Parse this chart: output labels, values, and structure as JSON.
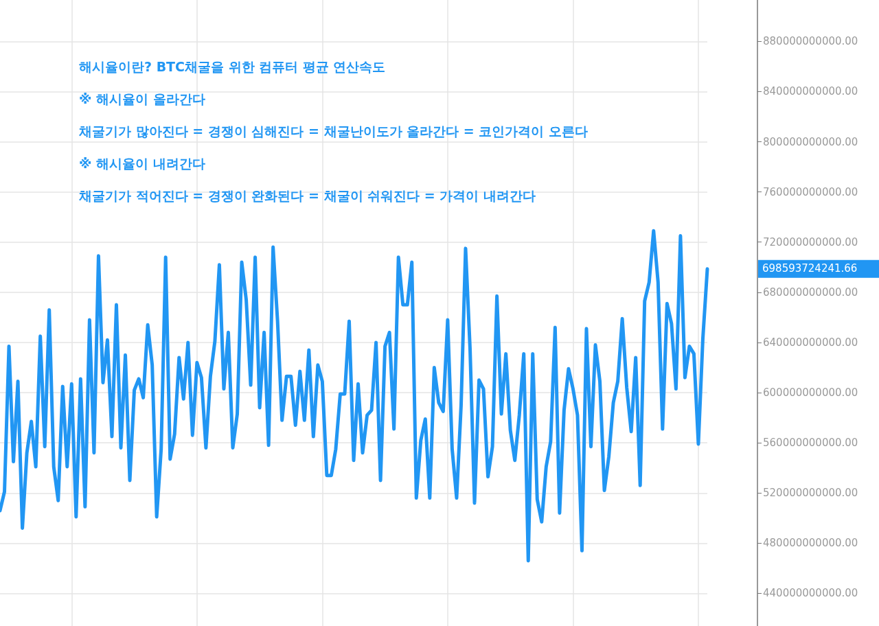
{
  "chart_data": {
    "type": "line",
    "annotations": [
      "해시율이란? BTC채굴을 위한 컴퓨터 평균 연산속도",
      "※ 해시율이 올라간다",
      "채굴기가 많아진다 = 경쟁이 심해진다 = 채굴난이도가 올라간다 = 코인가격이 오른다",
      "※ 해시율이 내려간다",
      "채굴기가 적어진다 = 경쟁이 완화된다 = 채굴이 쉬워진다 = 가격이 내려간다",
      "698593724241.66"
    ],
    "categories": [
      null,
      null,
      null,
      null,
      null,
      null,
      null,
      null,
      null,
      null,
      null,
      null,
      null,
      null,
      null,
      null,
      null,
      null,
      null,
      null,
      null,
      null,
      null,
      null,
      null,
      null,
      null,
      null,
      null,
      null,
      null,
      null,
      null,
      null,
      null,
      null,
      null,
      null,
      null,
      null,
      null,
      null,
      null,
      null,
      null,
      null,
      null,
      null,
      null,
      null,
      null,
      null,
      null,
      null,
      null,
      null,
      null,
      null,
      null,
      null,
      null,
      null,
      null,
      null,
      null,
      null,
      null,
      null,
      null,
      null,
      null,
      null,
      null,
      null,
      null,
      null,
      null,
      null,
      null,
      null,
      null,
      null,
      null,
      null,
      null,
      null,
      null,
      null,
      null,
      null,
      null,
      null,
      null,
      null,
      null,
      null,
      null,
      null,
      null,
      null,
      null,
      null,
      null,
      null,
      null,
      null,
      null,
      null,
      null,
      null,
      null,
      null,
      null,
      null,
      null,
      null,
      null,
      null,
      null,
      null,
      null,
      null,
      null,
      null,
      null,
      null,
      null,
      null,
      null,
      null,
      null,
      null,
      null,
      null,
      null,
      null,
      null,
      null,
      null,
      null,
      null,
      null,
      null,
      null,
      null,
      null,
      null,
      null,
      null,
      null,
      null,
      null,
      null,
      null,
      null,
      null,
      null,
      null,
      null
    ],
    "series": [
      {
        "color": "#2196f3",
        "values": [
          506000000000.0,
          521000000000.0,
          637000000000.0,
          545000000000.0,
          609000000000.0,
          492000000000.0,
          552000000000.0,
          577000000000.0,
          541000000000.0,
          645000000000.0,
          557000000000.0,
          666000000000.0,
          541000000000.0,
          514000000000.0,
          605000000000.0,
          541000000000.0,
          607000000000.0,
          501000000000.0,
          611000000000.0,
          509000000000.0,
          658000000000.0,
          552000000000.0,
          709000000000.0,
          608000000000.0,
          642000000000.0,
          565000000000.0,
          670000000000.0,
          556000000000.0,
          630000000000.0,
          530000000000.0,
          602000000000.0,
          611000000000.0,
          596000000000.0,
          654000000000.0,
          622000000000.0,
          501000000000.0,
          555000000000.0,
          708000000000.0,
          547000000000.0,
          567000000000.0,
          628000000000.0,
          595000000000.0,
          640000000000.0,
          566000000000.0,
          624000000000.0,
          612000000000.0,
          556000000000.0,
          613000000000.0,
          641000000000.0,
          702000000000.0,
          603000000000.0,
          648000000000.0,
          556000000000.0,
          583000000000.0,
          704000000000.0,
          674000000000.0,
          606000000000.0,
          708000000000.0,
          588000000000.0,
          648000000000.0,
          558000000000.0,
          716000000000.0,
          657000000000.0,
          578000000000.0,
          613000000000.0,
          613000000000.0,
          574000000000.0,
          617000000000.0,
          578000000000.0,
          634000000000.0,
          565000000000.0,
          622000000000.0,
          609000000000.0,
          534000000000.0,
          534000000000.0,
          555000000000.0,
          599000000000.0,
          599000000000.0,
          657000000000.0,
          546000000000.0,
          607000000000.0,
          552000000000.0,
          582000000000.0,
          586000000000.0,
          640000000000.0,
          530000000000.0,
          637000000000.0,
          648000000000.0,
          571000000000.0,
          708000000000.0,
          670000000000.0,
          670000000000.0,
          704000000000.0,
          516000000000.0,
          562000000000.0,
          579000000000.0,
          516000000000.0,
          620000000000.0,
          592000000000.0,
          585000000000.0,
          658000000000.0,
          555000000000.0,
          516000000000.0,
          590000000000.0,
          715000000000.0,
          635000000000.0,
          512000000000.0,
          610000000000.0,
          603000000000.0,
          533000000000.0,
          557000000000.0,
          677000000000.0,
          583000000000.0,
          631000000000.0,
          570000000000.0,
          546000000000.0,
          582000000000.0,
          631000000000.0,
          466000000000.0,
          631000000000.0,
          515000000000.0,
          497000000000.0,
          541000000000.0,
          561000000000.0,
          652000000000.0,
          504000000000.0,
          586000000000.0,
          619000000000.0,
          603000000000.0,
          582000000000.0,
          474000000000.0,
          651000000000.0,
          557000000000.0,
          638000000000.0,
          609000000000.0,
          522000000000.0,
          549000000000.0,
          592000000000.0,
          609000000000.0,
          659000000000.0,
          604000000000.0,
          569000000000.0,
          628000000000.0,
          526000000000.0,
          673000000000.0,
          688000000000.0,
          729000000000.0,
          688000000000.0,
          571000000000.0,
          671000000000.0,
          655000000000.0,
          603000000000.0,
          725000000000.0,
          612000000000.0,
          637000000000.0,
          631000000000.0,
          559000000000.0,
          643000000000.0,
          698593724241.66
        ]
      }
    ],
    "ylim": [
      414000000000.0,
      913000000000.0
    ],
    "yticks": [
      {
        "value": 440000000000.0,
        "label": "440000000000.00"
      },
      {
        "value": 480000000000.0,
        "label": "480000000000.00"
      },
      {
        "value": 520000000000.0,
        "label": "520000000000.00"
      },
      {
        "value": 560000000000.0,
        "label": "560000000000.00"
      },
      {
        "value": 600000000000.0,
        "label": "600000000000.00"
      },
      {
        "value": 640000000000.0,
        "label": "640000000000.00"
      },
      {
        "value": 680000000000.0,
        "label": "680000000000.00"
      },
      {
        "value": 720000000000.0,
        "label": "720000000000.00"
      },
      {
        "value": 760000000000.0,
        "label": "760000000000.00"
      },
      {
        "value": 800000000000.0,
        "label": "800000000000.00"
      },
      {
        "value": 840000000000.0,
        "label": "840000000000.00"
      },
      {
        "value": 880000000000.0,
        "label": "880000000000.00"
      }
    ],
    "grid": true,
    "line_style": "solid",
    "tick_labels": "y"
  }
}
